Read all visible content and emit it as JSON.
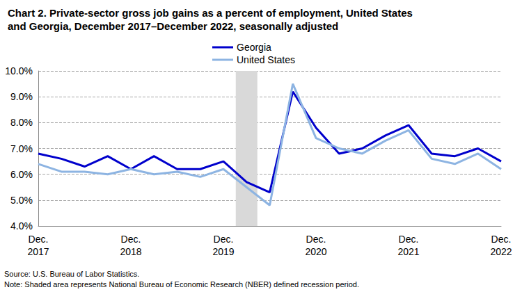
{
  "chart_data": {
    "type": "line",
    "title": "Chart 2. Private-sector gross job gains as a percent of employment, United States\nand Georgia, December 2017–December 2022, seasonally adjusted",
    "source": "Source: U.S. Bureau of Labor Statistics.",
    "note": "Note: Shaded area represents National Bureau of Economic Research (NBER) defined recession period.",
    "categories": [
      "Dec.\n2017",
      null,
      null,
      null,
      "Dec.\n2018",
      null,
      null,
      null,
      "Dec.\n2019",
      null,
      null,
      null,
      "Dec.\n2020",
      null,
      null,
      null,
      "Dec.\n2021",
      null,
      null,
      null,
      "Dec.\n2022"
    ],
    "recession": [
      false,
      false,
      false,
      false,
      false,
      false,
      false,
      false,
      false,
      true,
      false,
      false,
      false,
      false,
      false,
      false,
      false,
      false,
      false,
      false,
      false
    ],
    "series": [
      {
        "name": "Georgia",
        "color": "#0000cc",
        "values": [
          6.8,
          6.6,
          6.3,
          6.7,
          6.2,
          6.7,
          6.2,
          6.2,
          6.5,
          5.7,
          5.3,
          9.2,
          7.8,
          6.8,
          7.0,
          7.5,
          7.9,
          6.8,
          6.7,
          7.0,
          6.5
        ]
      },
      {
        "name": "United States",
        "color": "#8db4e2",
        "values": [
          6.4,
          6.1,
          6.1,
          6.0,
          6.2,
          6.0,
          6.1,
          5.9,
          6.2,
          5.5,
          4.8,
          9.5,
          7.4,
          7.0,
          6.8,
          7.3,
          7.7,
          6.6,
          6.4,
          6.8,
          6.2
        ]
      }
    ],
    "ylim": [
      4,
      10
    ],
    "yticks": [
      {
        "value": 4,
        "label": "4.0%"
      },
      {
        "value": 5,
        "label": "5.0%"
      },
      {
        "value": 6,
        "label": "6.0%"
      },
      {
        "value": 7,
        "label": "7.0%"
      },
      {
        "value": 8,
        "label": "8.0%"
      },
      {
        "value": 9,
        "label": "9.0%"
      },
      {
        "value": 10,
        "label": "10.0%"
      }
    ],
    "grid": true,
    "legend": "top"
  }
}
